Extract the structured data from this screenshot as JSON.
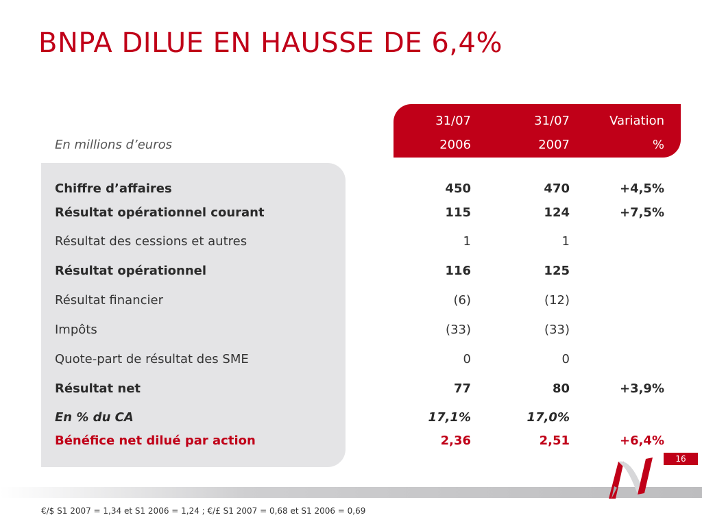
{
  "title": "BNPA DILUE EN HAUSSE DE 6,4%",
  "units_label": "En millions d’euros",
  "header": {
    "col1_line1": "31/07",
    "col1_line2": "2006",
    "col2_line1": "31/07",
    "col2_line2": "2007",
    "col3_line1": "Variation",
    "col3_line2": "%"
  },
  "rows": [
    {
      "label": "Chiffre d’affaires",
      "v2006": "450",
      "v2007": "470",
      "variation": "+4,5%"
    },
    {
      "label": "Résultat opérationnel courant",
      "v2006": "115",
      "v2007": "124",
      "variation": "+7,5%"
    },
    {
      "label": "Résultat des cessions et autres",
      "v2006": "1",
      "v2007": "1",
      "variation": ""
    },
    {
      "label": "Résultat opérationnel",
      "v2006": "116",
      "v2007": "125",
      "variation": ""
    },
    {
      "label": "Résultat financier",
      "v2006": "(6)",
      "v2007": "(12)",
      "variation": ""
    },
    {
      "label": "Impôts",
      "v2006": "(33)",
      "v2007": "(33)",
      "variation": ""
    },
    {
      "label": "Quote-part de résultat des SME",
      "v2006": "0",
      "v2007": "0",
      "variation": ""
    },
    {
      "label": "Résultat net",
      "v2006": "77",
      "v2007": "80",
      "variation": "+3,9%"
    },
    {
      "label": "En % du CA",
      "v2006": "17,1%",
      "v2007": "17,0%",
      "variation": ""
    },
    {
      "label": "Bénéfice net dilué par action",
      "v2006": "2,36",
      "v2007": "2,51",
      "variation": "+6,4%"
    }
  ],
  "page_number": "16",
  "footnote": "€/$ S1 2007 = 1,34 et S1 2006 = 1,24 ; €/£ S1 2007 = 0,68 et S1 2006 = 0,69",
  "colors": {
    "accent": "#c00018",
    "panel": "#e4e4e6"
  },
  "icons": {
    "logo": "ribbon-logo-icon"
  }
}
